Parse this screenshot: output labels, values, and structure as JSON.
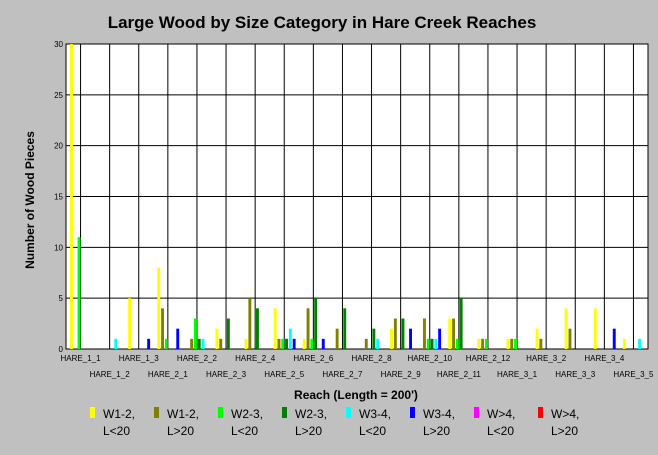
{
  "chart_data": {
    "type": "bar",
    "title": "Large Wood by Size Category in Hare Creek Reaches",
    "xlabel": "Reach (Length = 200')",
    "ylabel": "Number of Wood Pieces",
    "ylim": [
      0,
      30
    ],
    "yticks": [
      "0",
      "5",
      "10",
      "15",
      "20",
      "25",
      "30"
    ],
    "grid": true,
    "legend_position": "bottom",
    "categories": [
      "HARE_1_1",
      "HARE_1_2",
      "HARE_1_3",
      "HARE_2_1",
      "HARE_2_2",
      "HARE_2_3",
      "HARE_2_4",
      "HARE_2_5",
      "HARE_2_6",
      "HARE_2_7",
      "HARE_2_8",
      "HARE_2_9",
      "HARE_2_10",
      "HARE_2_11",
      "HARE_2_12",
      "HARE_3_1",
      "HARE_3_2",
      "HARE_3_3",
      "HARE_3_4",
      "HARE_3_5"
    ],
    "series": [
      {
        "name": "W1-2, L<20",
        "color": "#ffff00",
        "values": [
          30,
          0,
          5,
          8,
          0,
          2,
          1,
          4,
          1,
          0,
          0,
          2,
          0,
          3,
          1,
          1,
          2,
          4,
          4,
          1
        ]
      },
      {
        "name": "W1-2, L>20",
        "color": "#808000",
        "values": [
          0,
          0,
          0,
          4,
          1,
          1,
          5,
          1,
          4,
          2,
          1,
          3,
          3,
          3,
          1,
          1,
          1,
          2,
          0,
          0
        ]
      },
      {
        "name": "W2-3, L<20",
        "color": "#00ff00",
        "values": [
          11,
          0,
          0,
          1,
          3,
          0,
          0,
          1,
          1,
          0,
          0,
          0,
          1,
          1,
          1,
          1,
          0,
          0,
          0,
          0
        ]
      },
      {
        "name": "W2-3, L>20",
        "color": "#008000",
        "values": [
          0,
          0,
          0,
          0,
          1,
          3,
          4,
          1,
          5,
          4,
          2,
          3,
          1,
          5,
          0,
          0,
          0,
          0,
          0,
          0
        ]
      },
      {
        "name": "W3-4, L<20",
        "color": "#00ffff",
        "values": [
          0,
          1,
          0,
          0,
          1,
          0,
          0,
          2,
          0,
          0,
          1,
          0,
          1,
          0,
          0,
          0,
          0,
          0,
          0,
          1
        ]
      },
      {
        "name": "W3-4, L>20",
        "color": "#0000ff",
        "values": [
          0,
          0,
          1,
          2,
          0,
          0,
          0,
          1,
          1,
          0,
          0,
          2,
          2,
          0,
          0,
          0,
          0,
          0,
          2,
          0
        ]
      },
      {
        "name": "W>4, L<20",
        "color": "#ff00ff",
        "values": [
          0,
          0,
          0,
          0,
          0,
          0,
          0,
          0,
          0,
          0,
          0,
          0,
          0,
          0,
          0,
          0,
          0,
          0,
          0,
          0
        ]
      },
      {
        "name": "W>4, L>20",
        "color": "#ff0000",
        "values": [
          0,
          0,
          0,
          0,
          0,
          0,
          0,
          0,
          0,
          0,
          0,
          0,
          0,
          0,
          0,
          0,
          0,
          0,
          0,
          0
        ]
      }
    ]
  }
}
